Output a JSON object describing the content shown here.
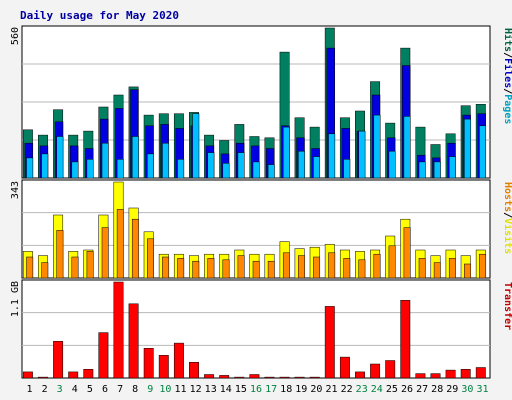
{
  "chart_data": {
    "type": "bar",
    "title": "Daily usage for May 2020",
    "categories": [
      "1",
      "2",
      "3",
      "4",
      "5",
      "6",
      "7",
      "8",
      "9",
      "10",
      "11",
      "12",
      "13",
      "14",
      "15",
      "16",
      "17",
      "18",
      "19",
      "20",
      "21",
      "22",
      "23",
      "24",
      "25",
      "26",
      "27",
      "28",
      "29",
      "30",
      "31"
    ],
    "weekend_day_color": "#008040",
    "weekday_day_color": "#000000",
    "weekend_days": [
      "3",
      "9",
      "10",
      "16",
      "17",
      "23",
      "24",
      "30",
      "31"
    ],
    "panels": [
      {
        "id": "hits",
        "ymax_label": "560",
        "ylim": [
          0,
          560
        ],
        "ylabel_parts": [
          {
            "text": "Hits",
            "color": "#006040"
          },
          {
            "text": "/",
            "color": "#000000"
          },
          {
            "text": "Files",
            "color": "#0000c0"
          },
          {
            "text": "/",
            "color": "#000000"
          },
          {
            "text": "Pages",
            "color": "#00a0c0"
          }
        ],
        "series": [
          {
            "name": "Hits",
            "color": "#008060",
            "values": [
              180,
              160,
              255,
              160,
              175,
              265,
              310,
              340,
              235,
              240,
              240,
              245,
              160,
              140,
              200,
              155,
              150,
              470,
              225,
              190,
              560,
              225,
              250,
              360,
              205,
              485,
              190,
              125,
              165,
              270,
              275
            ]
          },
          {
            "name": "Files",
            "color": "#0000e0",
            "values": [
              130,
              120,
              210,
              120,
              110,
              220,
              260,
              330,
              195,
              200,
              185,
              195,
              120,
              90,
              130,
              120,
              110,
              195,
              150,
              110,
              485,
              185,
              175,
              310,
              150,
              420,
              85,
              75,
              130,
              235,
              240
            ]
          },
          {
            "name": "Pages",
            "color": "#00c0ff",
            "values": [
              75,
              90,
              155,
              60,
              70,
              130,
              70,
              155,
              90,
              130,
              70,
              240,
              95,
              55,
              95,
              60,
              50,
              190,
              100,
              80,
              165,
              70,
              175,
              235,
              100,
              230,
              60,
              60,
              80,
              220,
              195
            ]
          }
        ]
      },
      {
        "id": "visits",
        "ymax_label": "343",
        "ylim": [
          0,
          343
        ],
        "ylabel_parts": [
          {
            "text": "Hosts",
            "color": "#e08000"
          },
          {
            "text": "/",
            "color": "#000000"
          },
          {
            "text": "Visits",
            "color": "#e0e000"
          }
        ],
        "series": [
          {
            "name": "Visits",
            "color": "#ffff00",
            "values": [
              95,
              80,
              225,
              95,
              100,
              225,
              343,
              250,
              165,
              85,
              85,
              80,
              85,
              85,
              100,
              85,
              85,
              130,
              105,
              110,
              120,
              100,
              95,
              100,
              150,
              210,
              100,
              80,
              100,
              80,
              100
            ]
          },
          {
            "name": "Hosts",
            "color": "#ff8800",
            "values": [
              75,
              55,
              170,
              75,
              95,
              180,
              245,
              210,
              140,
              75,
              70,
              60,
              70,
              65,
              80,
              60,
              60,
              90,
              80,
              75,
              90,
              70,
              65,
              85,
              115,
              180,
              70,
              55,
              70,
              50,
              85
            ]
          }
        ]
      },
      {
        "id": "transfer",
        "ymax_label": "1.1 GB",
        "ylim": [
          0,
          1.1
        ],
        "ylabel_parts": [
          {
            "text": "Transfer",
            "color": "#c00000"
          }
        ],
        "series": [
          {
            "name": "Transfer",
            "color": "#ff0000",
            "values": [
              0.07,
              0.01,
              0.42,
              0.07,
              0.1,
              0.52,
              1.1,
              0.85,
              0.34,
              0.26,
              0.4,
              0.18,
              0.04,
              0.03,
              0.01,
              0.04,
              0.01,
              0.01,
              0.01,
              0.01,
              0.82,
              0.24,
              0.07,
              0.16,
              0.2,
              0.89,
              0.05,
              0.05,
              0.09,
              0.1,
              0.12
            ]
          }
        ]
      }
    ]
  }
}
